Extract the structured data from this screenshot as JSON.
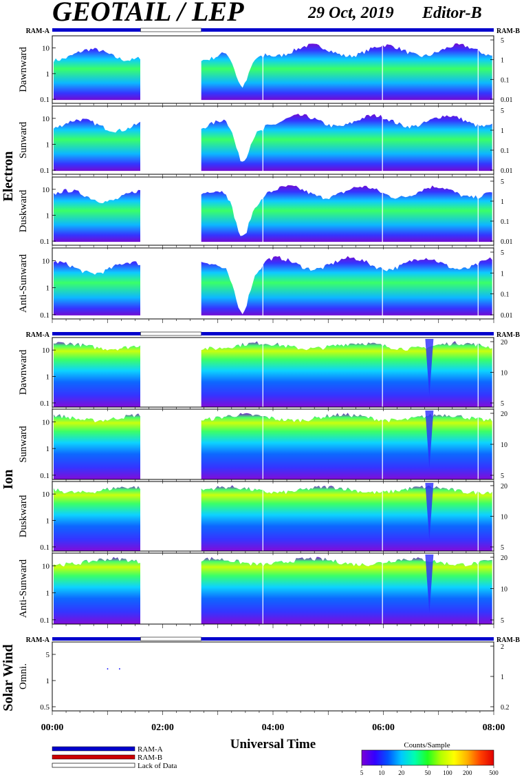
{
  "header": {
    "title": "GEOTAIL / LEP",
    "date": "29 Oct, 2019",
    "editor": "Editor-B"
  },
  "ram": {
    "a": "RAM-A",
    "b": "RAM-B"
  },
  "groups": {
    "electron": "Electron",
    "ion": "Ion",
    "solar_wind": "Solar Wind"
  },
  "xaxis": {
    "title": "Universal Time",
    "range": [
      "00:00",
      "08:00"
    ],
    "ticks": [
      "00:00",
      "02:00",
      "04:00",
      "06:00",
      "08:00"
    ]
  },
  "legend": {
    "ram_a": "RAM-A",
    "ram_b": "RAM-B",
    "lack": "Lack of Data",
    "colorbar_title": "Counts/Sample",
    "colorbar_ticks": [
      "5",
      "10",
      "20",
      "50",
      "100",
      "200",
      "500"
    ]
  },
  "colors": {
    "ram_a": "#0000cc",
    "ram_b": "#cc0000",
    "colorbar": [
      "#7a00d6",
      "#3300ff",
      "#0055ff",
      "#00c8ff",
      "#00ffb0",
      "#20ff20",
      "#b4ff00",
      "#ffff00",
      "#ffb000",
      "#ff4000",
      "#e00000"
    ]
  },
  "chart_data": {
    "type": "heatmap",
    "data_gap": [
      "01:36",
      "02:42"
    ],
    "vertical_lines": [
      "03:49",
      "05:59",
      "07:43"
    ],
    "panels": [
      {
        "group": "electron",
        "label": "Dawnward",
        "left_ticks": [
          "10",
          "1",
          "0.1"
        ],
        "right_ticks": [
          "5",
          "1",
          "0.1",
          "0.01"
        ]
      },
      {
        "group": "electron",
        "label": "Sunward",
        "left_ticks": [
          "10",
          "1",
          "0.1"
        ],
        "right_ticks": [
          "5",
          "1",
          "0.1",
          "0.01"
        ]
      },
      {
        "group": "electron",
        "label": "Duskward",
        "left_ticks": [
          "10",
          "1",
          "0.1"
        ],
        "right_ticks": [
          "5",
          "1",
          "0.1",
          "0.01"
        ]
      },
      {
        "group": "electron",
        "label": "Anti-Sunward",
        "left_ticks": [
          "10",
          "1",
          "0.1"
        ],
        "right_ticks": [
          "5",
          "1",
          "0.1",
          "0.01"
        ]
      },
      {
        "group": "ion",
        "label": "Dawnward",
        "left_ticks": [
          "10",
          "1",
          "0.1"
        ],
        "right_ticks": [
          "20",
          "10",
          "5"
        ]
      },
      {
        "group": "ion",
        "label": "Sunward",
        "left_ticks": [
          "10",
          "1",
          "0.1"
        ],
        "right_ticks": [
          "20",
          "10",
          "5"
        ]
      },
      {
        "group": "ion",
        "label": "Duskward",
        "left_ticks": [
          "10",
          "1",
          "0.1"
        ],
        "right_ticks": [
          "20",
          "10",
          "5"
        ]
      },
      {
        "group": "ion",
        "label": "Anti-Sunward",
        "left_ticks": [
          "10",
          "1",
          "0.1"
        ],
        "right_ticks": [
          "20",
          "10",
          "5"
        ]
      },
      {
        "group": "solar_wind",
        "label": "Omni.",
        "left_ticks": [
          "5",
          "1",
          "0.5"
        ],
        "right_ticks": [
          "2",
          "1",
          "0.2"
        ]
      }
    ]
  }
}
